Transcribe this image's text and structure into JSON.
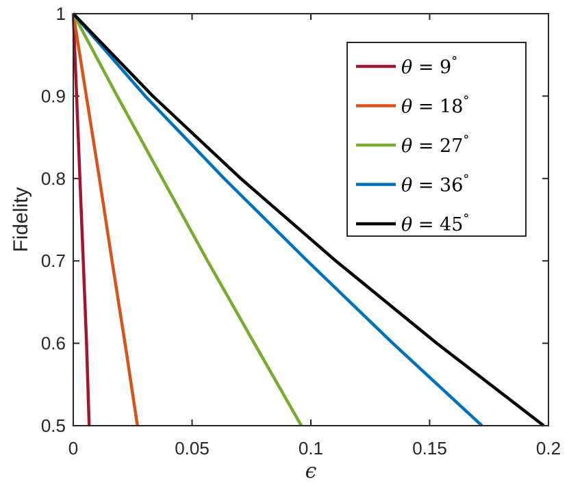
{
  "chart_data": {
    "type": "line",
    "title": "",
    "xlabel": "ϵ",
    "ylabel": "Fidelity",
    "xlim": [
      0,
      0.2
    ],
    "ylim": [
      0.5,
      1
    ],
    "xticks": [
      0,
      0.05,
      0.1,
      0.15,
      0.2
    ],
    "xtick_labels": [
      "0",
      "0.05",
      "0.1",
      "0.15",
      "0.2"
    ],
    "yticks": [
      0.5,
      0.6,
      0.7,
      0.8,
      0.9,
      1
    ],
    "ytick_labels": [
      "0.5",
      "0.6",
      "0.7",
      "0.8",
      "0.9",
      "1"
    ],
    "grid": false,
    "legend_position": "top-right",
    "series": [
      {
        "name": "θ = 9°",
        "theta": "θ",
        "eq": " = 9",
        "deg": "°",
        "color": "#A2142F",
        "x": [
          0,
          0.0014,
          0.0028,
          0.0042,
          0.0056,
          0.0067
        ],
        "y": [
          1,
          0.9,
          0.8,
          0.7,
          0.6,
          0.5
        ]
      },
      {
        "name": "θ = 18°",
        "theta": "θ",
        "eq": " = 18",
        "deg": "°",
        "color": "#D95319",
        "x": [
          0,
          0.0055,
          0.011,
          0.0163,
          0.0218,
          0.027
        ],
        "y": [
          1,
          0.9,
          0.8,
          0.7,
          0.6,
          0.5
        ]
      },
      {
        "name": "θ = 27°",
        "theta": "θ",
        "eq": " = 27",
        "deg": "°",
        "color": "#77AC30",
        "x": [
          0,
          0.0185,
          0.0375,
          0.0565,
          0.0762,
          0.096
        ],
        "y": [
          1,
          0.9,
          0.8,
          0.7,
          0.6,
          0.5
        ]
      },
      {
        "name": "θ = 36°",
        "theta": "θ",
        "eq": " = 36",
        "deg": "°",
        "color": "#0072BD",
        "x": [
          0,
          0.0303,
          0.0635,
          0.0985,
          0.1345,
          0.172
        ],
        "y": [
          1,
          0.9,
          0.8,
          0.7,
          0.6,
          0.5
        ]
      },
      {
        "name": "θ = 45°",
        "theta": "θ",
        "eq": " = 45",
        "deg": "°",
        "color": "#000000",
        "x": [
          0,
          0.0335,
          0.0705,
          0.1105,
          0.153,
          0.198
        ],
        "y": [
          1,
          0.9,
          0.8,
          0.7,
          0.6,
          0.5
        ]
      }
    ]
  }
}
